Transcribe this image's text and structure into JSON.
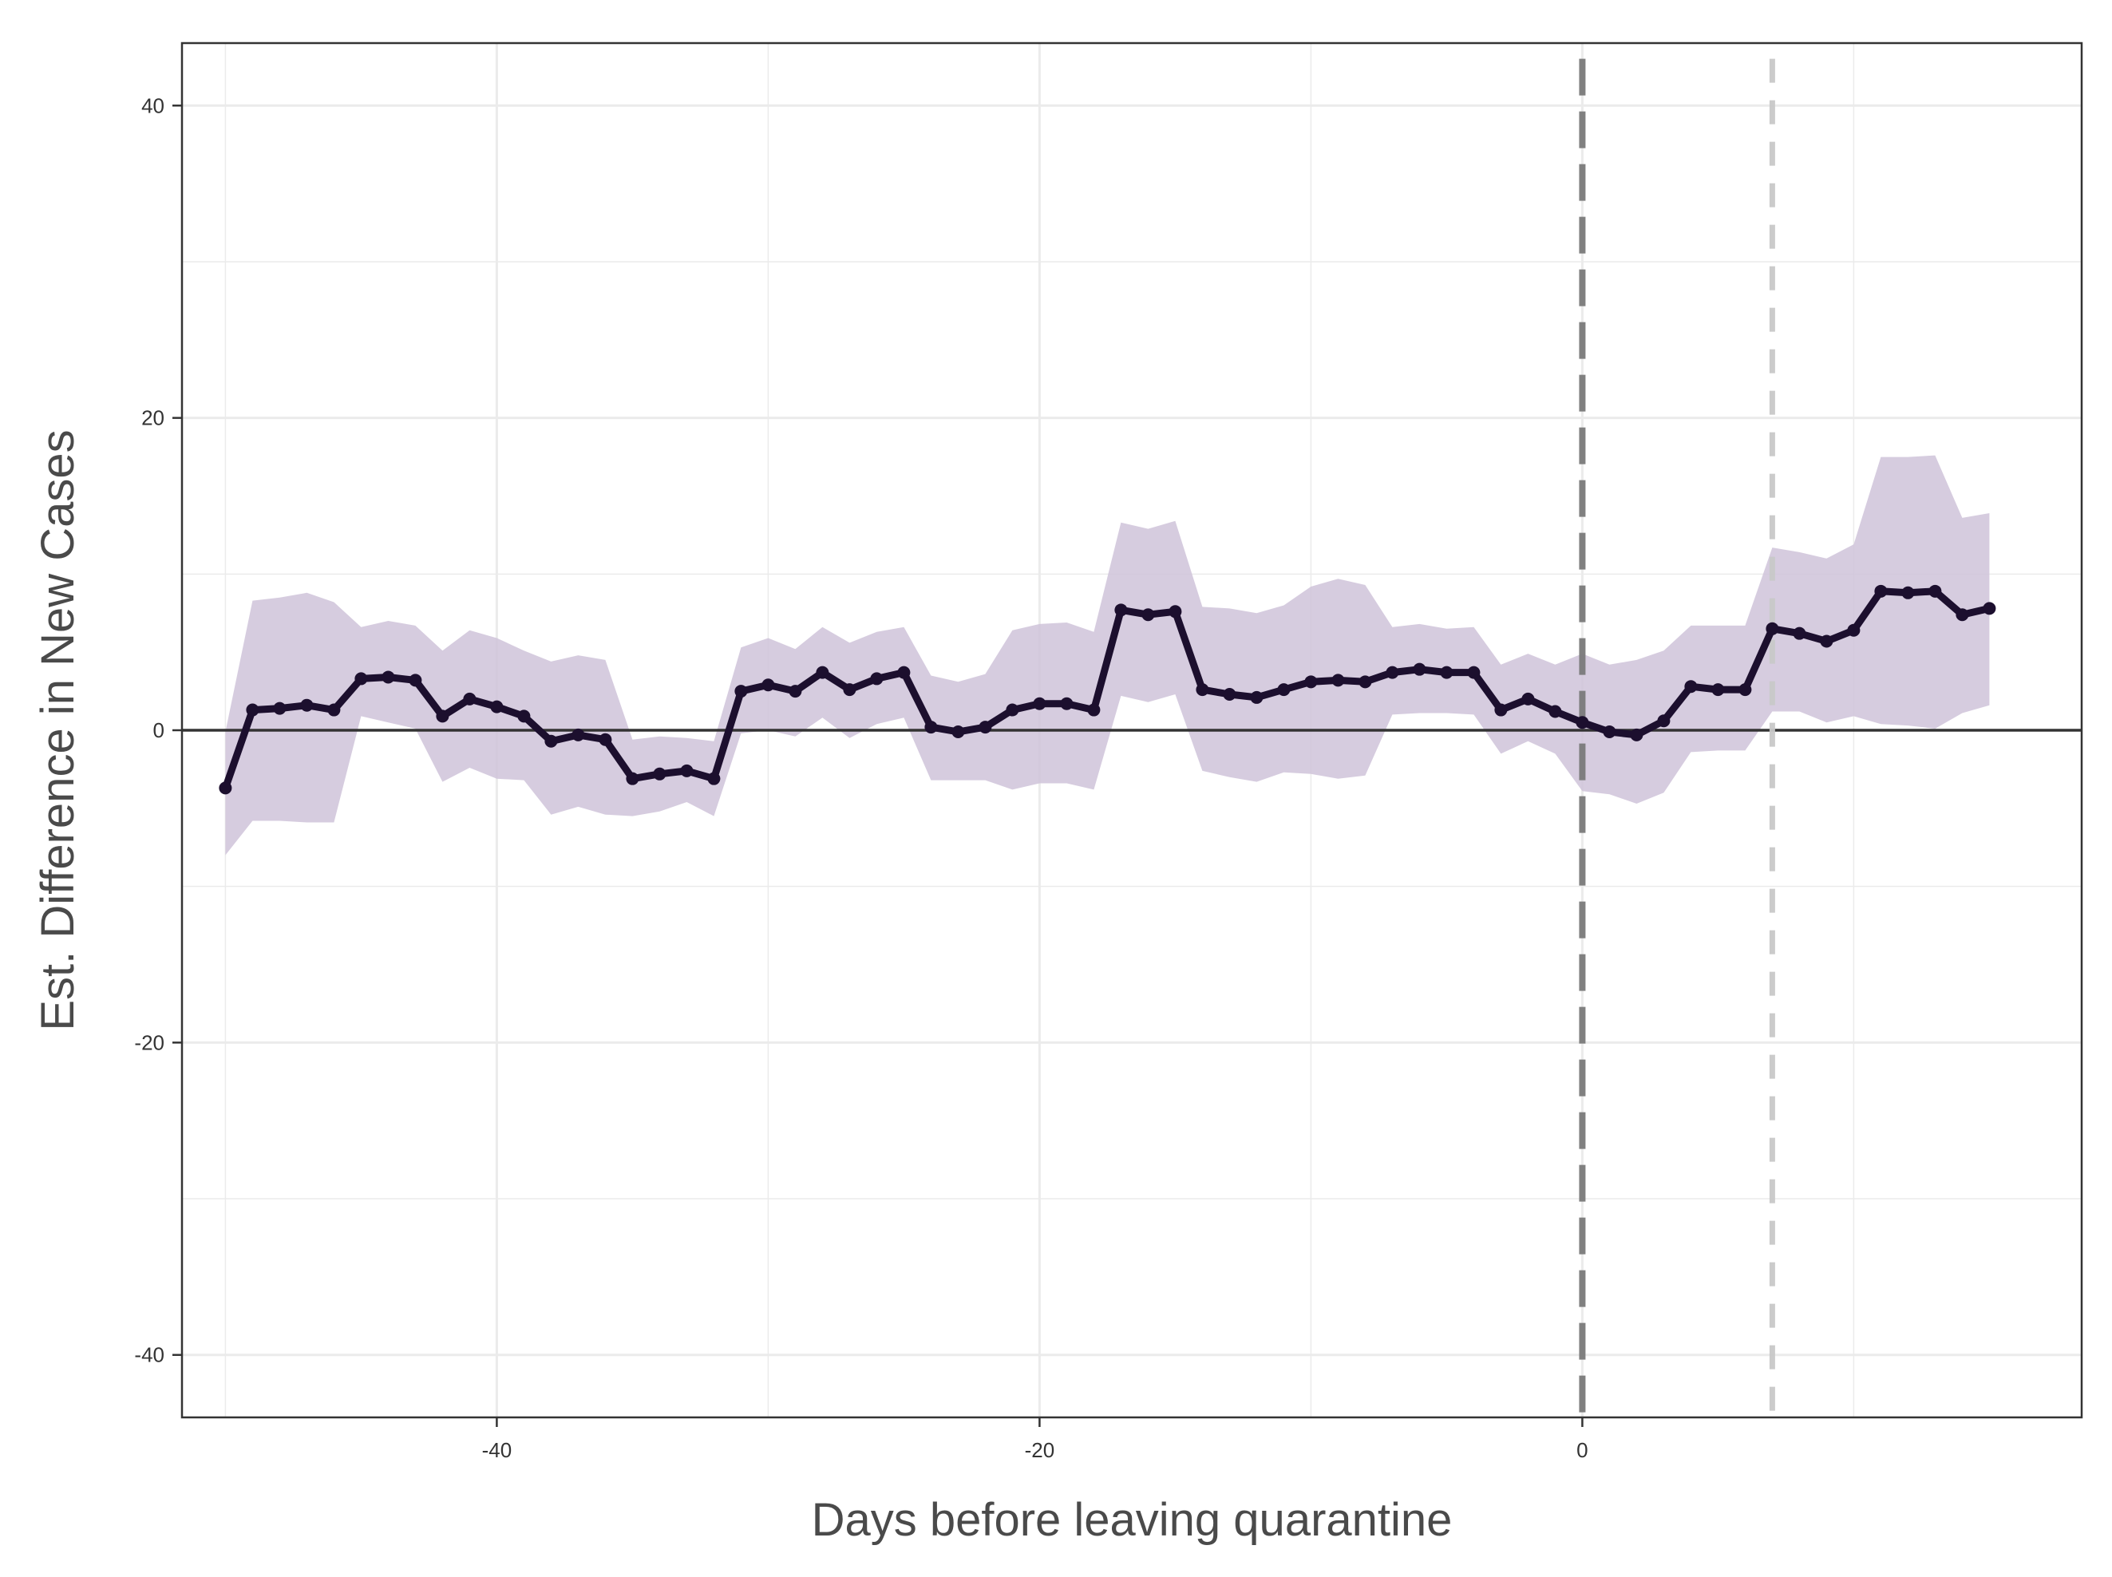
{
  "chart_data": {
    "type": "line",
    "title": "",
    "xlabel": "Days before leaving quarantine",
    "ylabel": "Est. Difference in New Cases",
    "xlim": [
      -51.6,
      18.4
    ],
    "ylim": [
      -44,
      44
    ],
    "x_ticks": [
      -40,
      -20,
      0
    ],
    "x_tick_labels": [
      "-40",
      "-20",
      "0"
    ],
    "x_minor": [
      -50,
      -30,
      -10,
      10
    ],
    "y_ticks": [
      -40,
      -20,
      0,
      20,
      40
    ],
    "y_tick_labels": [
      "-40",
      "-20",
      "0",
      "20",
      "40"
    ],
    "y_minor": [
      -30,
      -10,
      10,
      30
    ],
    "grid": true,
    "hline": 0,
    "vlines": [
      {
        "x": 0,
        "style": "long-dash",
        "color": "#7a7a7a"
      },
      {
        "x": 7,
        "style": "dash",
        "color": "#c8c8c8"
      }
    ],
    "colors": {
      "line": "#1c0f2e",
      "band": "#cfc3d9",
      "grid": "#ebebeb",
      "panel_border": "#333333",
      "zero_line": "#333333"
    },
    "series": [
      {
        "name": "estimate",
        "x": [
          -50,
          -49,
          -48,
          -47,
          -46,
          -45,
          -44,
          -43,
          -42,
          -41,
          -40,
          -39,
          -38,
          -37,
          -36,
          -35,
          -34,
          -33,
          -32,
          -31,
          -30,
          -29,
          -28,
          -27,
          -26,
          -25,
          -24,
          -23,
          -22,
          -21,
          -20,
          -19,
          -18,
          -17,
          -16,
          -15,
          -14,
          -13,
          -12,
          -11,
          -10,
          -9,
          -8,
          -7,
          -6,
          -5,
          -4,
          -3,
          -2,
          -1,
          0,
          1,
          2,
          3,
          4,
          5,
          6,
          7,
          8,
          9,
          10,
          11,
          12,
          13,
          14,
          15
        ],
        "values": [
          -3.7,
          1.3,
          1.4,
          1.6,
          1.3,
          3.3,
          3.4,
          3.2,
          0.9,
          2.0,
          1.5,
          0.9,
          -0.7,
          -0.3,
          -0.6,
          -3.1,
          -2.8,
          -2.6,
          -3.1,
          2.5,
          2.9,
          2.5,
          3.7,
          2.6,
          3.3,
          3.7,
          0.2,
          -0.1,
          0.2,
          1.3,
          1.7,
          1.7,
          1.3,
          7.7,
          7.4,
          7.6,
          2.6,
          2.3,
          2.1,
          2.6,
          3.1,
          3.2,
          3.1,
          3.7,
          3.9,
          3.7,
          3.7,
          1.3,
          2.0,
          1.2,
          0.5,
          -0.1,
          -0.3,
          0.6,
          2.8,
          2.6,
          2.6,
          6.5,
          6.2,
          5.7,
          6.4,
          8.9,
          8.8,
          8.9,
          7.4,
          7.8
        ],
        "lower": [
          -8.0,
          -5.8,
          -5.8,
          -5.9,
          -5.9,
          0.9,
          0.5,
          0.1,
          -3.3,
          -2.4,
          -3.1,
          -3.2,
          -5.4,
          -4.9,
          -5.4,
          -5.5,
          -5.2,
          -4.6,
          -5.5,
          -0.2,
          0.0,
          -0.4,
          0.8,
          -0.5,
          0.4,
          0.8,
          -3.2,
          -3.2,
          -3.2,
          -3.8,
          -3.4,
          -3.4,
          -3.8,
          2.2,
          1.8,
          2.3,
          -2.6,
          -3.0,
          -3.3,
          -2.7,
          -2.8,
          -3.1,
          -2.9,
          1.0,
          1.1,
          1.1,
          1.0,
          -1.5,
          -0.7,
          -1.5,
          -3.9,
          -4.1,
          -4.7,
          -4.0,
          -1.4,
          -1.3,
          -1.3,
          1.2,
          1.2,
          0.5,
          0.9,
          0.4,
          0.3,
          0.1,
          1.1,
          1.6
        ],
        "upper": [
          -0.1,
          8.3,
          8.5,
          8.8,
          8.2,
          6.6,
          7.0,
          6.7,
          5.1,
          6.4,
          5.9,
          5.1,
          4.4,
          4.8,
          4.5,
          -0.6,
          -0.4,
          -0.5,
          -0.7,
          5.3,
          5.9,
          5.2,
          6.6,
          5.6,
          6.3,
          6.6,
          3.5,
          3.1,
          3.6,
          6.4,
          6.8,
          6.9,
          6.3,
          13.3,
          12.9,
          13.4,
          7.9,
          7.8,
          7.5,
          8.0,
          9.2,
          9.7,
          9.3,
          6.6,
          6.8,
          6.5,
          6.6,
          4.2,
          4.9,
          4.2,
          4.9,
          4.2,
          4.5,
          5.1,
          6.7,
          6.7,
          6.7,
          11.7,
          11.4,
          11.0,
          11.9,
          17.5,
          17.5,
          17.6,
          13.6,
          13.9
        ]
      }
    ]
  }
}
